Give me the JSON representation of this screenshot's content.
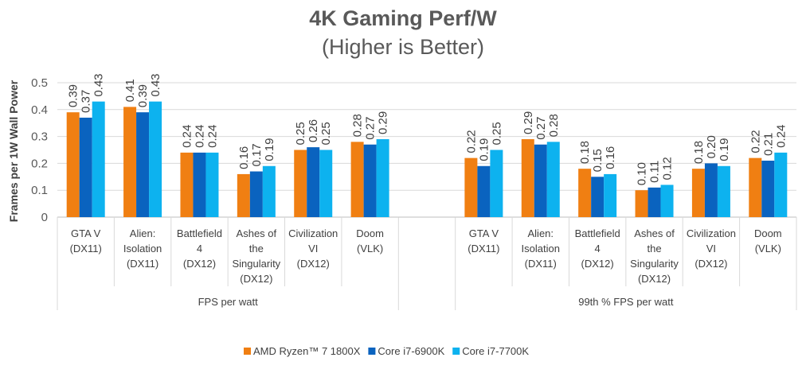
{
  "chart_data": {
    "type": "bar",
    "title": "4K Gaming Perf/W",
    "subtitle": "(Higher is Better)",
    "ylabel": "Frames per 1W Wall Power",
    "ylim": [
      0,
      0.5
    ],
    "yticks": [
      "0",
      "0.1",
      "0.2",
      "0.3",
      "0.4",
      "0.5"
    ],
    "grid": true,
    "legend_position": "bottom",
    "groups": [
      {
        "label": "FPS per watt",
        "categories": [
          "GTA V\n(DX11)",
          "Alien:\nIsolation\n(DX11)",
          "Battlefield\n4\n(DX12)",
          "Ashes of\nthe\nSingularity\n(DX12)",
          "Civilization\nVI\n(DX12)",
          "Doom\n(VLK)"
        ]
      },
      {
        "label": "99th % FPS per watt",
        "categories": [
          "GTA V\n(DX11)",
          "Alien:\nIsolation\n(DX11)",
          "Battlefield\n4\n(DX12)",
          "Ashes of\nthe\nSingularity\n(DX12)",
          "Civilization\nVI\n(DX12)",
          "Doom\n(VLK)"
        ]
      }
    ],
    "series": [
      {
        "name": "AMD Ryzen™ 7 1800X",
        "color": "#f07f12",
        "values": [
          [
            0.39,
            0.41,
            0.24,
            0.16,
            0.25,
            0.28
          ],
          [
            0.22,
            0.29,
            0.18,
            0.1,
            0.18,
            0.22
          ]
        ],
        "labels": [
          [
            "0.39",
            "0.41",
            "0.24",
            "0.16",
            "0.25",
            "0.28"
          ],
          [
            "0.22",
            "0.29",
            "0.18",
            "0.10",
            "0.18",
            "0.22"
          ]
        ]
      },
      {
        "name": "Core i7-6900K",
        "color": "#0a63bf",
        "values": [
          [
            0.37,
            0.39,
            0.24,
            0.17,
            0.26,
            0.27
          ],
          [
            0.19,
            0.27,
            0.15,
            0.11,
            0.2,
            0.21
          ]
        ],
        "labels": [
          [
            "0.37",
            "0.39",
            "0.24",
            "0.17",
            "0.26",
            "0.27"
          ],
          [
            "0.19",
            "0.27",
            "0.15",
            "0.11",
            "0.20",
            "0.21"
          ]
        ]
      },
      {
        "name": "Core i7-7700K",
        "color": "#0db2ef",
        "values": [
          [
            0.43,
            0.43,
            0.24,
            0.19,
            0.25,
            0.29
          ],
          [
            0.25,
            0.28,
            0.16,
            0.12,
            0.19,
            0.24
          ]
        ],
        "labels": [
          [
            "0.43",
            "0.43",
            "0.24",
            "0.19",
            "0.25",
            "0.29"
          ],
          [
            "0.25",
            "0.28",
            "0.16",
            "0.12",
            "0.19",
            "0.24"
          ]
        ]
      }
    ]
  }
}
